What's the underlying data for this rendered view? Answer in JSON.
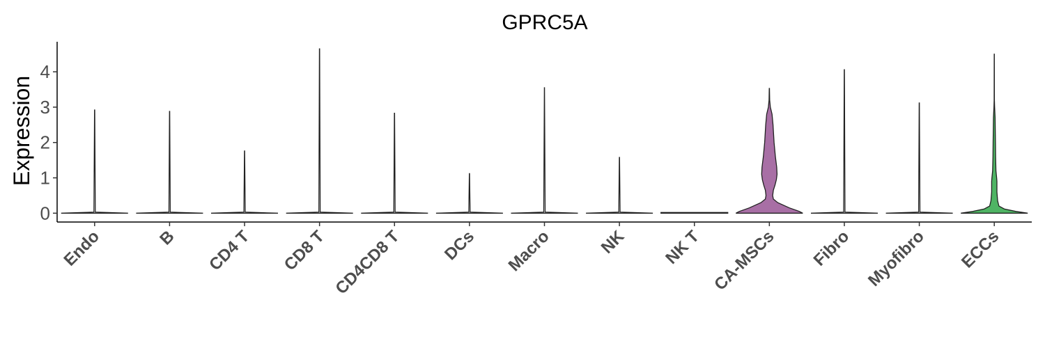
{
  "chart_data": {
    "type": "violin",
    "title": "GPRC5A",
    "ylabel": "Expression",
    "xlabel": "",
    "ylim": [
      -0.25,
      4.85
    ],
    "yticks": [
      0,
      1,
      2,
      3,
      4
    ],
    "categories": [
      "Endo",
      "B",
      "CD4 T",
      "CD8 T",
      "CD4CD8 T",
      "DCs",
      "Macro",
      "NK",
      "NK T",
      "CA-MSCs",
      "Fibro",
      "Myofibro",
      "ECCs"
    ],
    "series": [
      {
        "category": "Endo",
        "max": 2.92,
        "color": "#ffffff",
        "density": [
          [
            0,
            1.0
          ],
          [
            0.03,
            0.02
          ],
          [
            2.92,
            0.003
          ]
        ]
      },
      {
        "category": "B",
        "max": 2.88,
        "color": "#ffffff",
        "density": [
          [
            0,
            1.0
          ],
          [
            0.03,
            0.02
          ],
          [
            2.88,
            0.003
          ]
        ]
      },
      {
        "category": "CD4 T",
        "max": 1.76,
        "color": "#ffffff",
        "density": [
          [
            0,
            1.0
          ],
          [
            0.03,
            0.02
          ],
          [
            1.76,
            0.003
          ]
        ]
      },
      {
        "category": "CD8 T",
        "max": 4.65,
        "color": "#ffffff",
        "density": [
          [
            0,
            1.0
          ],
          [
            0.03,
            0.02
          ],
          [
            4.65,
            0.003
          ]
        ]
      },
      {
        "category": "CD4CD8 T",
        "max": 2.83,
        "color": "#ffffff",
        "density": [
          [
            0,
            1.0
          ],
          [
            0.03,
            0.02
          ],
          [
            2.83,
            0.003
          ]
        ]
      },
      {
        "category": "DCs",
        "max": 1.12,
        "color": "#ffffff",
        "density": [
          [
            0,
            1.0
          ],
          [
            0.03,
            0.02
          ],
          [
            1.12,
            0.003
          ]
        ]
      },
      {
        "category": "Macro",
        "max": 3.55,
        "color": "#ffffff",
        "density": [
          [
            0,
            1.0
          ],
          [
            0.03,
            0.02
          ],
          [
            3.55,
            0.003
          ]
        ]
      },
      {
        "category": "NK",
        "max": 1.58,
        "color": "#ffffff",
        "density": [
          [
            0,
            1.0
          ],
          [
            0.03,
            0.02
          ],
          [
            1.58,
            0.003
          ]
        ]
      },
      {
        "category": "NK T",
        "max": 0.0,
        "color": "#ffffff",
        "density": [
          [
            0,
            1.0
          ],
          [
            0.02,
            1.0
          ]
        ]
      },
      {
        "category": "CA-MSCs",
        "max": 3.53,
        "color": "#a86fa5",
        "density": [
          [
            0,
            1.0
          ],
          [
            0.05,
            0.9
          ],
          [
            0.15,
            0.6
          ],
          [
            0.3,
            0.25
          ],
          [
            0.4,
            0.12
          ],
          [
            0.5,
            0.1
          ],
          [
            0.65,
            0.12
          ],
          [
            0.8,
            0.17
          ],
          [
            0.95,
            0.21
          ],
          [
            1.1,
            0.23
          ],
          [
            1.3,
            0.22
          ],
          [
            1.6,
            0.18
          ],
          [
            2.0,
            0.14
          ],
          [
            2.5,
            0.11
          ],
          [
            2.8,
            0.08
          ],
          [
            3.0,
            0.03
          ],
          [
            3.2,
            0.01
          ],
          [
            3.53,
            0.003
          ]
        ]
      },
      {
        "category": "Fibro",
        "max": 4.06,
        "color": "#ffffff",
        "density": [
          [
            0,
            1.0
          ],
          [
            0.03,
            0.02
          ],
          [
            4.06,
            0.003
          ]
        ]
      },
      {
        "category": "Myofibro",
        "max": 3.12,
        "color": "#ffffff",
        "density": [
          [
            0,
            1.0
          ],
          [
            0.03,
            0.02
          ],
          [
            3.12,
            0.003
          ]
        ]
      },
      {
        "category": "ECCs",
        "max": 4.5,
        "color": "#4fb464",
        "density": [
          [
            0,
            1.0
          ],
          [
            0.05,
            0.65
          ],
          [
            0.12,
            0.3
          ],
          [
            0.2,
            0.14
          ],
          [
            0.35,
            0.1
          ],
          [
            0.6,
            0.08
          ],
          [
            0.9,
            0.08
          ],
          [
            1.0,
            0.07
          ],
          [
            1.2,
            0.05
          ],
          [
            1.6,
            0.04
          ],
          [
            2.0,
            0.035
          ],
          [
            2.4,
            0.03
          ],
          [
            2.7,
            0.025
          ],
          [
            3.0,
            0.01
          ],
          [
            3.2,
            0.005
          ],
          [
            4.5,
            0.002
          ]
        ]
      }
    ]
  }
}
